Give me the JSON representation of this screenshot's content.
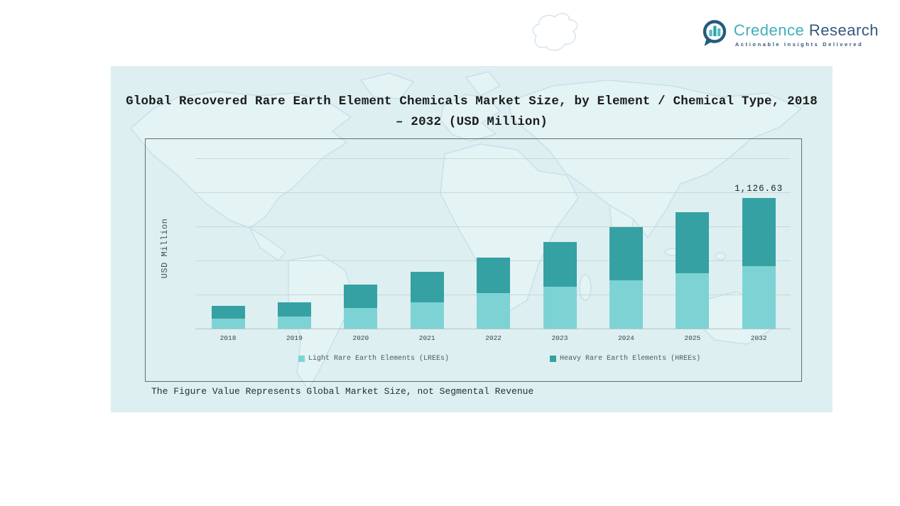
{
  "brand": {
    "name_primary": "Credence",
    "name_secondary": "Research",
    "tagline": "Actionable Insights Delivered",
    "icon": "bar-chart-speech-bubble-icon",
    "color_primary": "#3fafbb",
    "color_secondary": "#33587c"
  },
  "title": {
    "line1": "Global Recovered Rare Earth Element Chemicals Market Size, by Element / Chemical Type, 2018",
    "line2": "– 2032 (USD Million)"
  },
  "footnote": "The Figure Value Represents Global Market Size, not Segmental Revenue",
  "chart_data": {
    "type": "bar",
    "stacked": true,
    "title": "Global Recovered Rare Earth Element Chemicals Market Size, by Element / Chemical Type, 2018 – 2032 (USD Million)",
    "ylabel": "USD Million",
    "xlabel": "",
    "categories": [
      "2018",
      "2019",
      "2020",
      "2021",
      "2022",
      "2023",
      "2024",
      "2025",
      "2032"
    ],
    "series": [
      {
        "name": "Light Rare Earth Elements (LREEs)",
        "color": "#7dd3d4",
        "values": [
          86,
          104,
          174,
          229,
          306,
          359,
          421,
          478,
          541.3
        ]
      },
      {
        "name": "Heavy Rare Earth Elements (HREEs)",
        "color": "#35a1a3",
        "values": [
          108,
          122,
          204,
          263,
          306,
          388,
          457,
          525,
          585.33
        ]
      }
    ],
    "totals": [
      194,
      226,
      378,
      492,
      612,
      747,
      878,
      1003,
      1126.63
    ],
    "value_labels": [
      {
        "category": "2032",
        "text": "1,126.63"
      }
    ],
    "ylim": [
      0,
      1300
    ],
    "grid": true,
    "legend_position": "bottom-inside"
  },
  "colors": {
    "panel_background": "#ddeff1",
    "plot_border": "#5f706e",
    "gridline": "#c9d7d7",
    "axis_line": "#b3c5c7",
    "map_outline": "#c2dde8",
    "text": "#1c1c1c"
  }
}
